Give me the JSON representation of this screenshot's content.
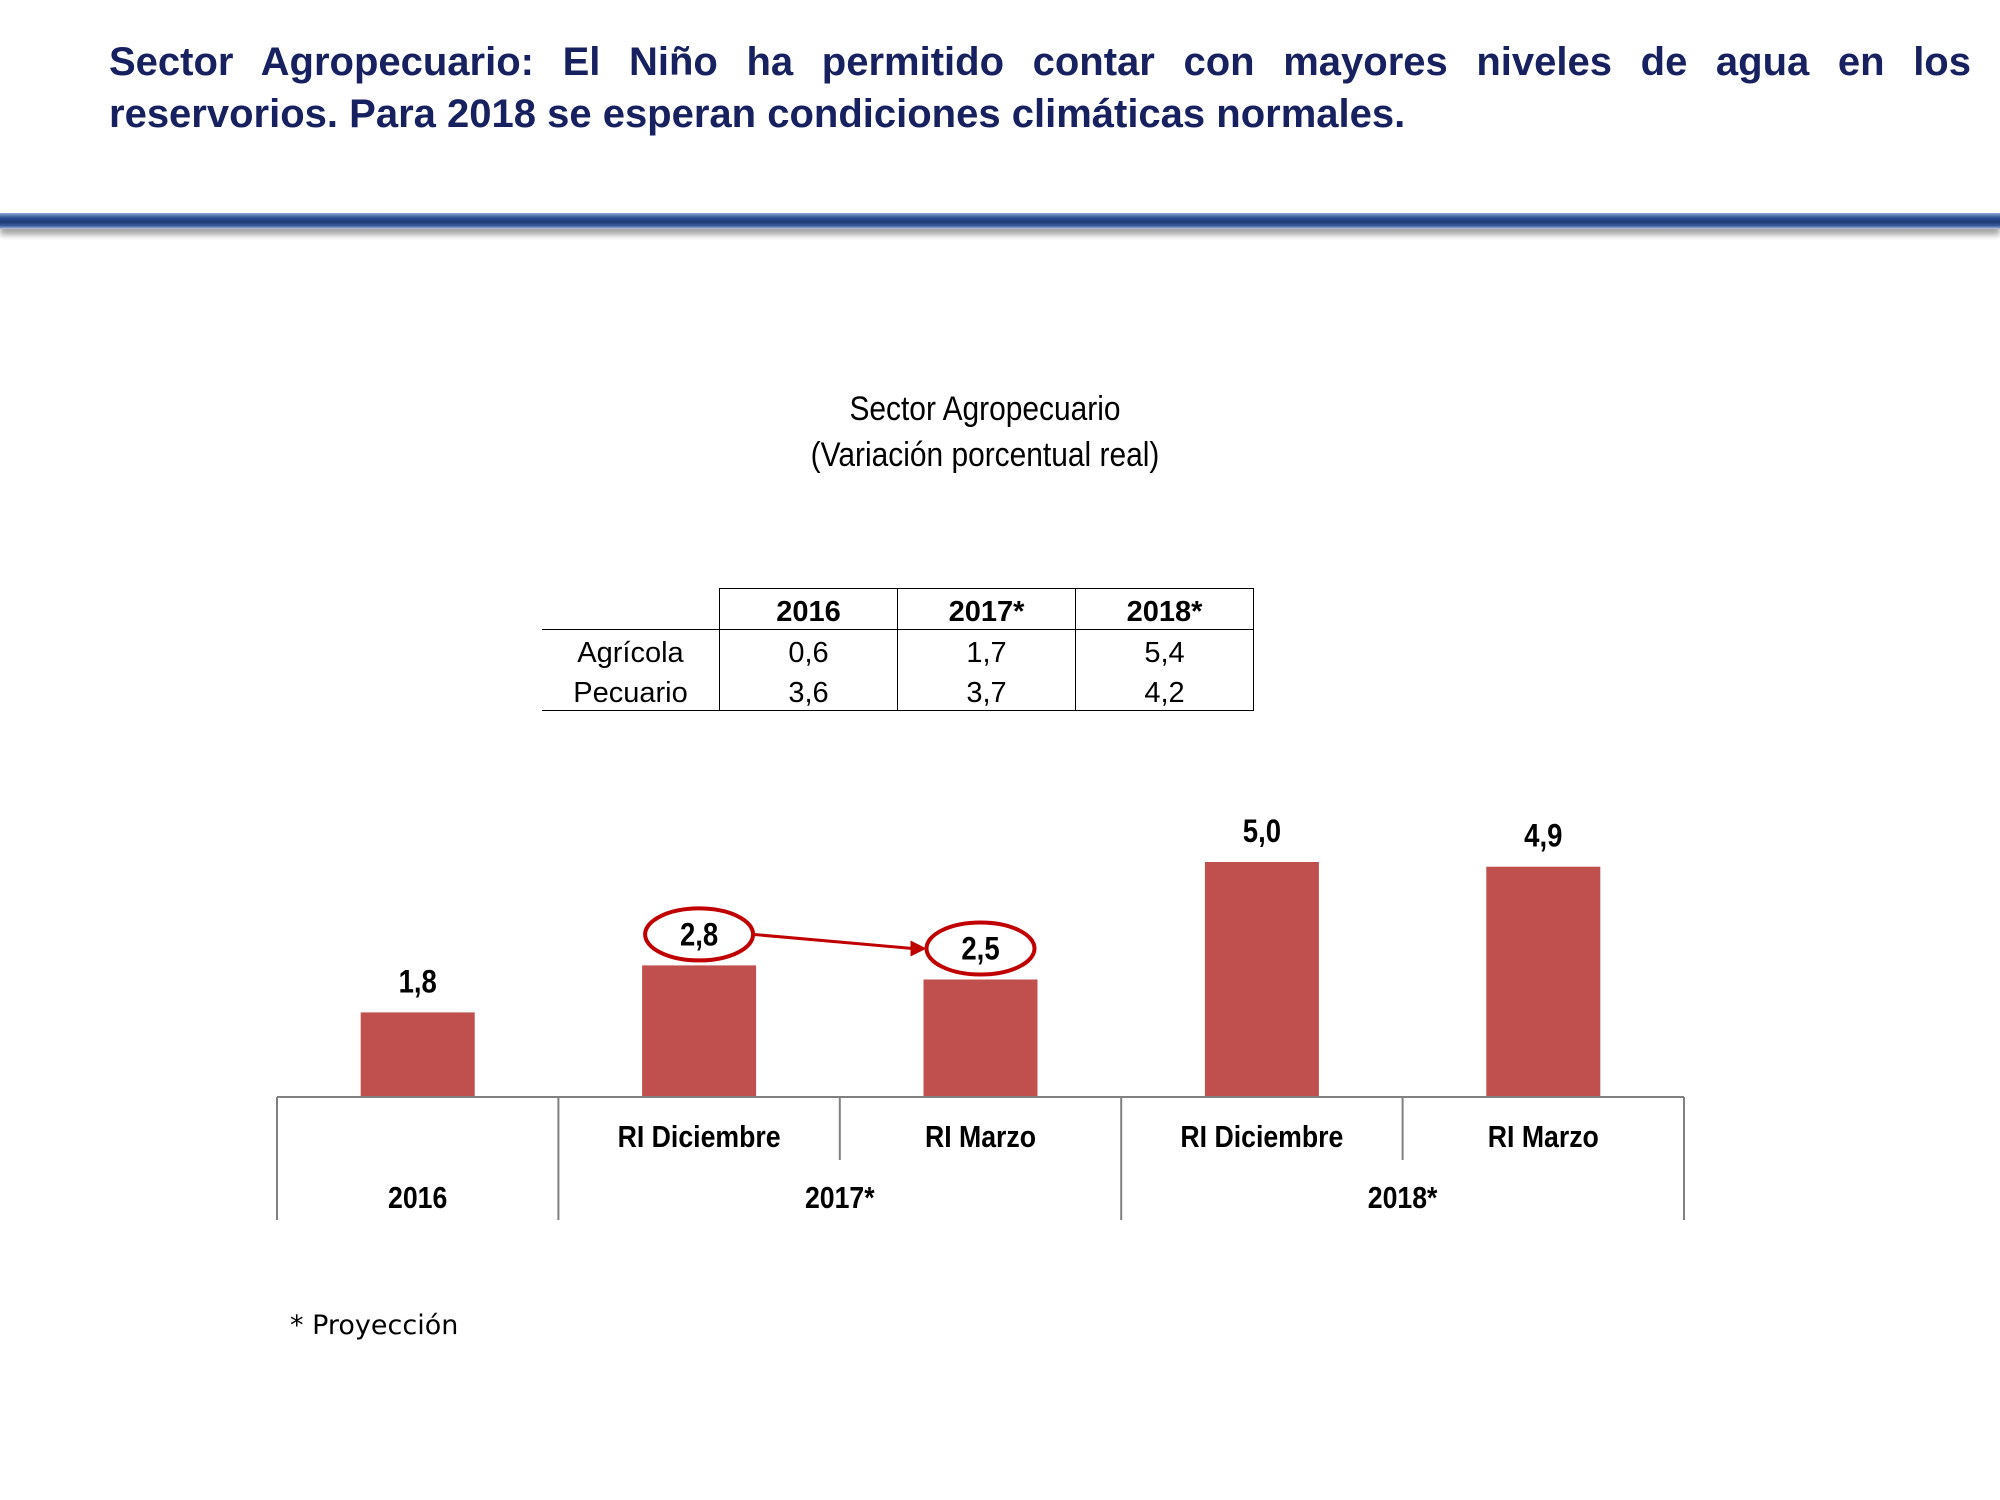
{
  "slide": {
    "title": "Sector Agropecuario: El Niño ha permitido contar con mayores niveles de agua en los reservorios. Para 2018 se esperan condiciones climáticas normales.",
    "footnote": "* Proyección",
    "accent_color": "#1d3a78",
    "title_color": "#17215f"
  },
  "table": {
    "columns": [
      "2016",
      "2017*",
      "2018*"
    ],
    "rows": [
      {
        "label": "Agrícola",
        "values": [
          "0,6",
          "1,7",
          "5,4"
        ]
      },
      {
        "label": "Pecuario",
        "values": [
          "3,6",
          "3,7",
          "4,2"
        ]
      }
    ]
  },
  "chart_data": {
    "type": "bar",
    "title": "Sector Agropecuario",
    "subtitle": "(Variación porcentual real)",
    "categories": [
      "",
      "RI Diciembre",
      "RI Marzo",
      "RI Diciembre",
      "RI Marzo"
    ],
    "groups": [
      {
        "label": "2016",
        "span": 1
      },
      {
        "label": "2017*",
        "span": 2
      },
      {
        "label": "2018*",
        "span": 2
      }
    ],
    "values": [
      1.8,
      2.8,
      2.5,
      5.0,
      4.9
    ],
    "value_labels": [
      "1,8",
      "2,8",
      "2,5",
      "5,0",
      "4,9"
    ],
    "highlighted": [
      1,
      2
    ],
    "arrow": {
      "from": 1,
      "to": 2
    },
    "ylim": [
      0,
      5.5
    ],
    "grid": false,
    "bar_color": "#c0504d",
    "highlight_color": "#c00000"
  }
}
